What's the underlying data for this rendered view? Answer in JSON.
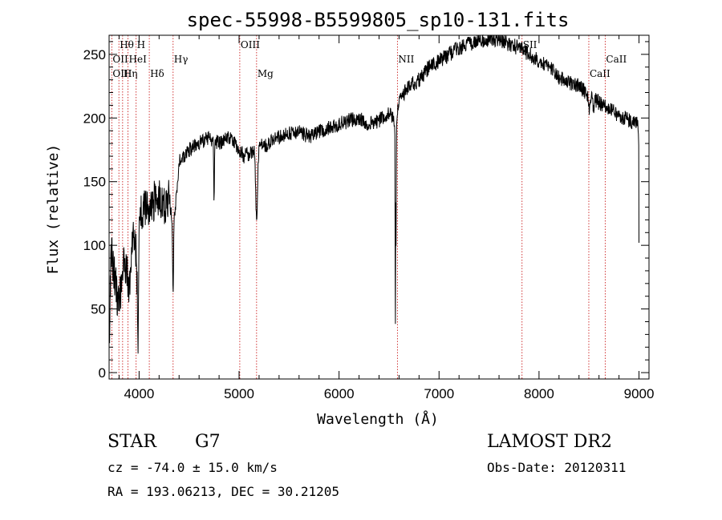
{
  "chart_data": {
    "type": "line",
    "title": "spec-55998-B5599805_sp10-131.fits",
    "xlabel": "Wavelength (Å)",
    "ylabel": "Flux (relative)",
    "xlim": [
      3700,
      9100
    ],
    "ylim": [
      -5,
      265
    ],
    "x_ticks": [
      4000,
      5000,
      6000,
      7000,
      8000,
      9000
    ],
    "y_ticks": [
      0,
      50,
      100,
      150,
      200,
      250
    ],
    "y_tick_labels": [
      "0",
      "50",
      "100",
      "150",
      "200",
      "250"
    ],
    "spectrum_anchors": {
      "x": [
        3700,
        3720,
        3750,
        3780,
        3800,
        3830,
        3850,
        3880,
        3900,
        3930,
        3950,
        3970,
        3990,
        4000,
        4050,
        4100,
        4150,
        4200,
        4250,
        4300,
        4340,
        4400,
        4450,
        4500,
        4600,
        4700,
        4800,
        4900,
        5000,
        5050,
        5100,
        5150,
        5175,
        5200,
        5300,
        5400,
        5500,
        5600,
        5700,
        5800,
        5900,
        6000,
        6100,
        6200,
        6300,
        6400,
        6500,
        6530,
        6563,
        6600,
        6700,
        6800,
        6900,
        7000,
        7100,
        7200,
        7300,
        7400,
        7500,
        7600,
        7700,
        7800,
        7900,
        8000,
        8100,
        8200,
        8300,
        8400,
        8500,
        8600,
        8700,
        8800,
        8900,
        8960,
        8990,
        9000
      ],
      "y": [
        20,
        95,
        80,
        60,
        55,
        70,
        90,
        80,
        60,
        100,
        110,
        95,
        40,
        125,
        130,
        125,
        135,
        140,
        130,
        140,
        110,
        165,
        170,
        175,
        180,
        185,
        180,
        185,
        175,
        170,
        172,
        175,
        160,
        178,
        180,
        185,
        188,
        190,
        185,
        190,
        192,
        195,
        198,
        200,
        195,
        198,
        205,
        200,
        195,
        215,
        225,
        230,
        240,
        245,
        250,
        255,
        258,
        260,
        262,
        262,
        258,
        255,
        250,
        245,
        240,
        232,
        228,
        225,
        218,
        212,
        208,
        202,
        198,
        196,
        195,
        170
      ]
    },
    "absorption_dips": [
      {
        "x": 3990,
        "depth": 0.7,
        "width": 4
      },
      {
        "x": 4340,
        "depth": 0.45,
        "width": 6
      },
      {
        "x": 4750,
        "depth": 0.25,
        "width": 5
      },
      {
        "x": 5175,
        "depth": 0.25,
        "width": 12
      },
      {
        "x": 6563,
        "depth": 0.9,
        "width": 3
      },
      {
        "x": 6570,
        "depth": 0.5,
        "width": 3
      },
      {
        "x": 8500,
        "depth": 0.05,
        "width": 8
      },
      {
        "x": 8545,
        "depth": 0.05,
        "width": 8
      }
    ],
    "noise_amplitude": 6,
    "reference_lines": [
      {
        "label": "Hθ",
        "wavelength": 3798,
        "row": 1
      },
      {
        "label": "H",
        "wavelength": 3970,
        "row": 1
      },
      {
        "label": "OII",
        "wavelength": 3727,
        "row": 2
      },
      {
        "label": "HeI",
        "wavelength": 3889,
        "row": 2
      },
      {
        "label": "Hγ",
        "wavelength": 4340,
        "row": 2
      },
      {
        "label": "OIII",
        "wavelength": 5007,
        "row": 1
      },
      {
        "label": "NII",
        "wavelength": 6584,
        "row": 2
      },
      {
        "label": "SII",
        "wavelength": 7830,
        "row": 1
      },
      {
        "label": "CaII",
        "wavelength": 8662,
        "row": 2
      },
      {
        "label": "OIII",
        "wavelength": 3727,
        "row": 3
      },
      {
        "label": "Hη",
        "wavelength": 3835,
        "row": 3
      },
      {
        "label": "Hδ",
        "wavelength": 4102,
        "row": 3
      },
      {
        "label": "Mg",
        "wavelength": 5175,
        "row": 3
      },
      {
        "label": "CaII",
        "wavelength": 8498,
        "row": 3
      }
    ],
    "extra_line_wavelengths": [
      3889,
      4102,
      4340,
      5007,
      5175,
      6584,
      7830,
      8498,
      8662
    ]
  },
  "info": {
    "object_type": "STAR",
    "subclass": "G7",
    "survey": "LAMOST DR2",
    "redshift_line": "cz = -74.0 ± 15.0 km/s",
    "obs_date": "Obs-Date: 20120311",
    "coords": "RA = 193.06213, DEC =  30.21205"
  },
  "colors": {
    "spectrum": "#000000",
    "reference_line": "#cc2222",
    "axes": "#000000"
  }
}
